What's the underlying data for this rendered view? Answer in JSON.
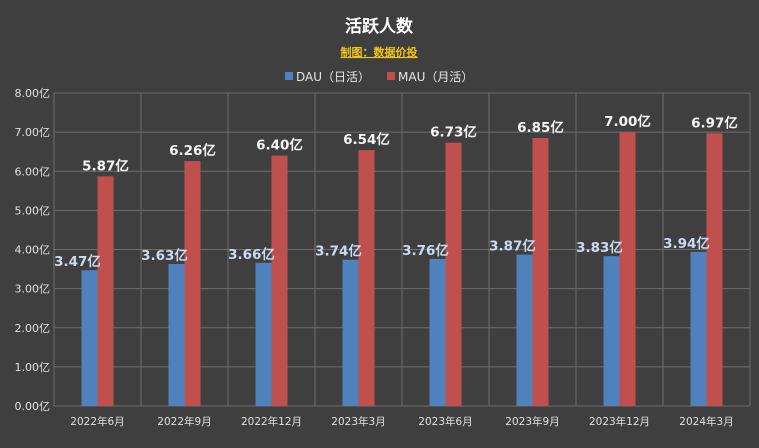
{
  "chart_data": {
    "type": "bar",
    "title": "活跃人数",
    "subtitle": "制图：数据价投",
    "categories": [
      "2022年6月",
      "2022年9月",
      "2022年12月",
      "2023年3月",
      "2023年6月",
      "2023年9月",
      "2023年12月",
      "2024年3月"
    ],
    "series": [
      {
        "name": "DAU（日活）",
        "color": "#4f81bd",
        "values": [
          3.47,
          3.63,
          3.66,
          3.74,
          3.76,
          3.87,
          3.83,
          3.94
        ],
        "labels": [
          "3.47亿",
          "3.63亿",
          "3.66亿",
          "3.74亿",
          "3.76亿",
          "3.87亿",
          "3.83亿",
          "3.94亿"
        ]
      },
      {
        "name": "MAU（月活）",
        "color": "#c0504d",
        "values": [
          5.87,
          6.26,
          6.4,
          6.54,
          6.73,
          6.85,
          7.0,
          6.97
        ],
        "labels": [
          "5.87亿",
          "6.26亿",
          "6.40亿",
          "6.54亿",
          "6.73亿",
          "6.85亿",
          "7.00亿",
          "6.97亿"
        ]
      }
    ],
    "ylim": [
      0,
      8
    ],
    "yticks": [
      0,
      1,
      2,
      3,
      4,
      5,
      6,
      7,
      8
    ],
    "ytick_labels": [
      "0.00亿",
      "1.00亿",
      "2.00亿",
      "3.00亿",
      "4.00亿",
      "5.00亿",
      "6.00亿",
      "7.00亿",
      "8.00亿"
    ],
    "grid": true,
    "legend_position": "top"
  }
}
